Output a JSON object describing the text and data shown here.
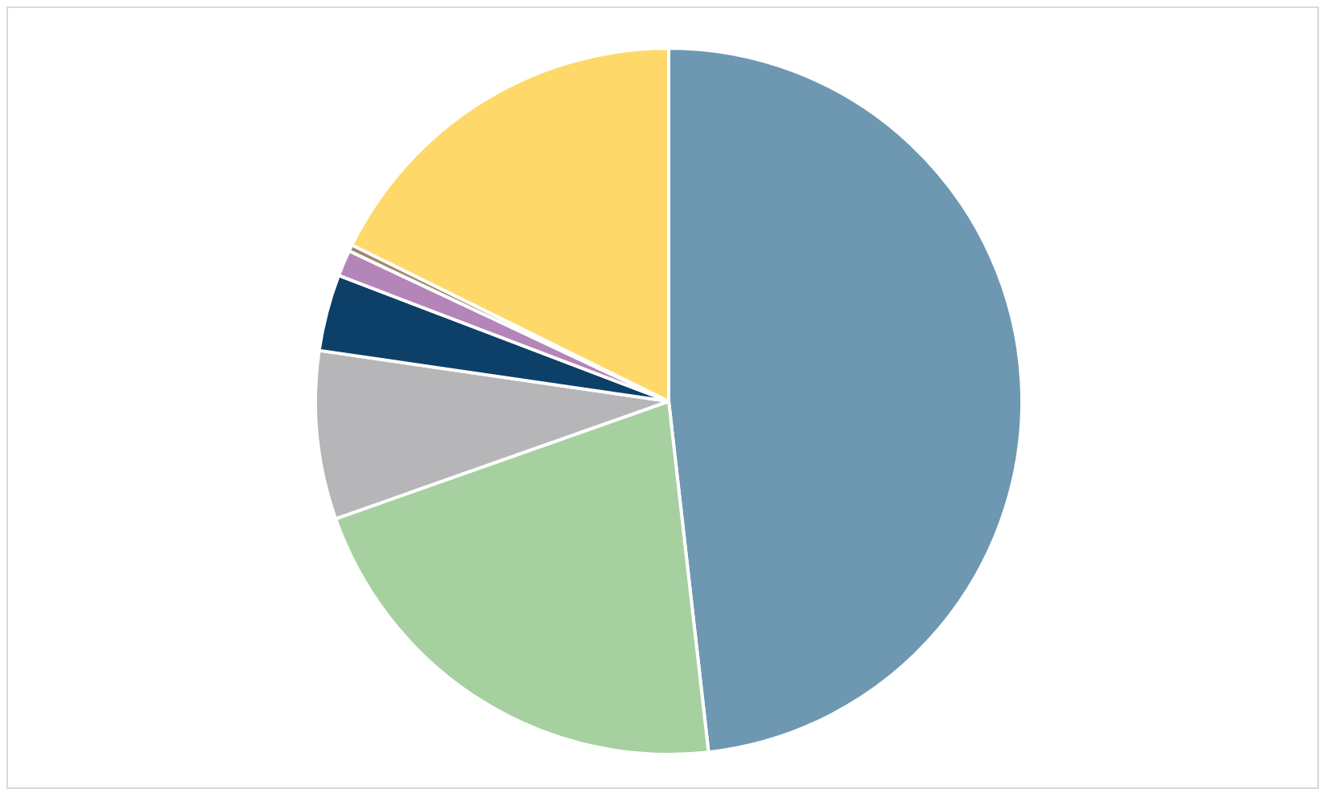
{
  "chart_data": {
    "type": "pie",
    "categories": [
      null,
      null,
      null,
      null,
      null,
      null,
      null
    ],
    "values": [
      48.2,
      21.4,
      7.7,
      3.5,
      1.2,
      0.3,
      17.7
    ],
    "colors": [
      "#6e97b2",
      "#a6d0a0",
      "#b6b6b8",
      "#0d4069",
      "#b385b9",
      "#a08a68",
      "#fed96a"
    ],
    "legend": false
  }
}
